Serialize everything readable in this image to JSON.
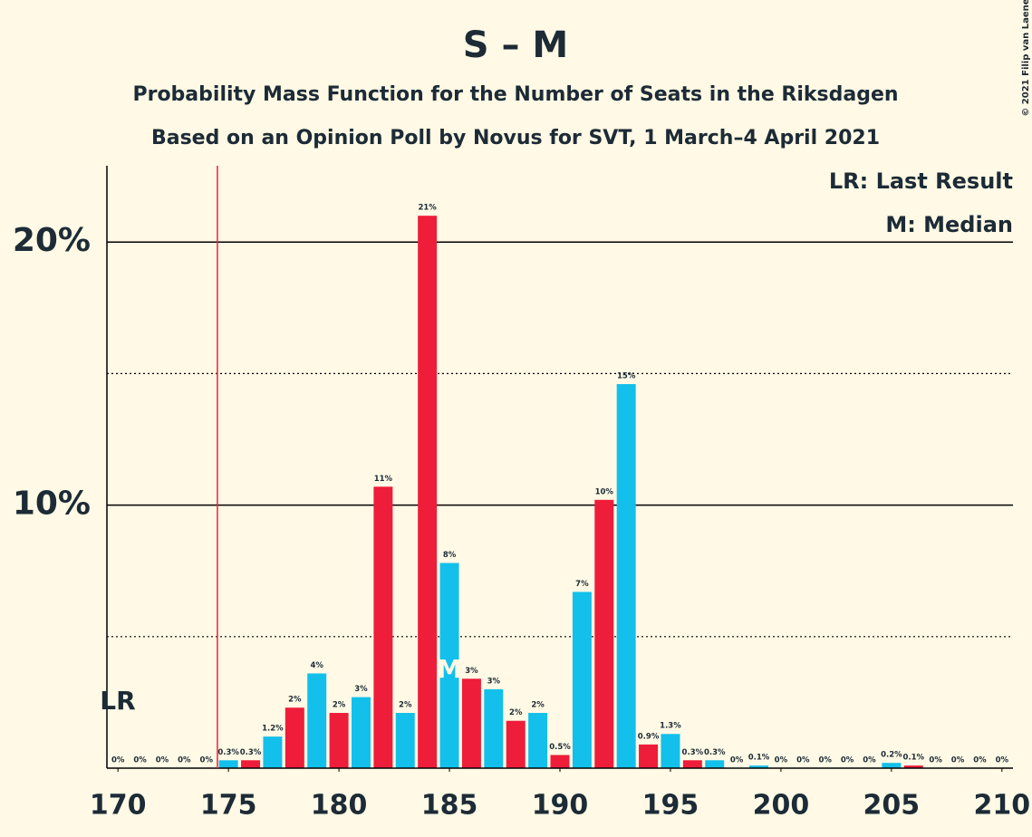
{
  "chart_data": {
    "type": "bar",
    "title": "S – M",
    "subtitle": "Probability Mass Function for the Number of Seats in the Riksdagen",
    "subtitle2": "Based on an Opinion Poll by Novus for SVT, 1 March–4 April 2021",
    "copyright": "© 2021 Filip van Laenen",
    "x": [
      170,
      171,
      172,
      173,
      174,
      175,
      176,
      177,
      178,
      179,
      180,
      181,
      182,
      183,
      184,
      185,
      186,
      187,
      188,
      189,
      190,
      191,
      192,
      193,
      194,
      195,
      196,
      197,
      198,
      199,
      200,
      201,
      202,
      203,
      204,
      205,
      206,
      207,
      208,
      209,
      210
    ],
    "values": [
      0,
      0,
      0,
      0,
      0,
      0.3,
      0.3,
      1.2,
      2.3,
      3.6,
      2.1,
      2.7,
      10.7,
      2.1,
      21.0,
      7.8,
      3.4,
      3.0,
      1.8,
      2.1,
      0.5,
      6.7,
      10.2,
      14.6,
      0.9,
      1.3,
      0.3,
      0.3,
      0,
      0.1,
      0,
      0,
      0,
      0,
      0,
      0.2,
      0.1,
      0,
      0,
      0,
      0
    ],
    "value_labels": [
      "0%",
      "0%",
      "0%",
      "0%",
      "0%",
      "0.3%",
      "0.3%",
      "1.2%",
      "2%",
      "4%",
      "2%",
      "3%",
      "11%",
      "2%",
      "21%",
      "8%",
      "3%",
      "3%",
      "2%",
      "2%",
      "0.5%",
      "7%",
      "10%",
      "15%",
      "0.9%",
      "1.3%",
      "0.3%",
      "0.3%",
      "0%",
      "0.1%",
      "0%",
      "0%",
      "0%",
      "0%",
      "0%",
      "0.2%",
      "0.1%",
      "0%",
      "0%",
      "0%",
      "0%"
    ],
    "colors": [
      "#ee1d3a",
      "#12c0eb",
      "#ee1d3a",
      "#12c0eb",
      "#ee1d3a",
      "#12c0eb",
      "#ee1d3a",
      "#12c0eb",
      "#ee1d3a",
      "#12c0eb",
      "#ee1d3a",
      "#12c0eb",
      "#ee1d3a",
      "#12c0eb",
      "#ee1d3a",
      "#12c0eb",
      "#ee1d3a",
      "#12c0eb",
      "#ee1d3a",
      "#12c0eb",
      "#ee1d3a",
      "#12c0eb",
      "#ee1d3a",
      "#12c0eb",
      "#ee1d3a",
      "#12c0eb",
      "#ee1d3a",
      "#12c0eb",
      "#ee1d3a",
      "#12c0eb",
      "#ee1d3a",
      "#12c0eb",
      "#ee1d3a",
      "#12c0eb",
      "#ee1d3a",
      "#12c0eb",
      "#ee1d3a",
      "#12c0eb",
      "#ee1d3a",
      "#12c0eb",
      "#ee1d3a"
    ],
    "xlim": [
      169.5,
      210.5
    ],
    "xticks": [
      170,
      175,
      180,
      185,
      190,
      195,
      200,
      205,
      210
    ],
    "ylim": [
      0,
      22.9
    ],
    "yticks": [
      {
        "value": 10,
        "label": "10%"
      },
      {
        "value": 20,
        "label": "20%"
      }
    ],
    "minor_yticks": [
      5,
      15
    ],
    "last_result": 175,
    "last_result_label": "LR",
    "median": 185,
    "median_label": "M",
    "legend": [
      "LR: Last Result",
      "M: Median"
    ]
  }
}
